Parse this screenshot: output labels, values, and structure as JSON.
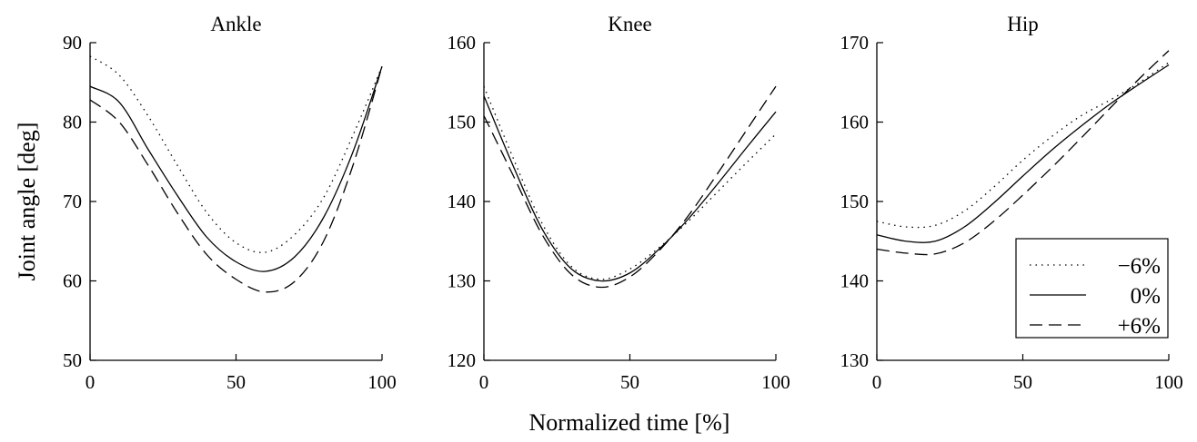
{
  "figure": {
    "ylabel": "Joint angle [deg]",
    "xlabel": "Normalized time [%]"
  },
  "legend": {
    "placement": "bottom-right of Hip panel",
    "entries": [
      {
        "label": "−6%",
        "style": "dotted"
      },
      {
        "label": "0%",
        "style": "solid"
      },
      {
        "label": "+6%",
        "style": "dashed"
      }
    ]
  },
  "chart_data": [
    {
      "type": "line",
      "title": "Ankle",
      "xlim": [
        0,
        100
      ],
      "ylim": [
        50,
        90
      ],
      "xticks": [
        "0",
        "50",
        "100"
      ],
      "yticks": [
        "50",
        "60",
        "70",
        "80",
        "90"
      ],
      "grid": false,
      "series": [
        {
          "name": "−6%",
          "style": "dotted",
          "x": [
            0,
            10,
            20,
            30,
            40,
            50,
            60,
            70,
            80,
            90,
            100
          ],
          "y": [
            88.3,
            85.9,
            80.7,
            74.5,
            68.6,
            64.8,
            63.6,
            65.8,
            70.5,
            78.3,
            87.0
          ]
        },
        {
          "name": "0%",
          "style": "solid",
          "x": [
            0,
            10,
            20,
            30,
            40,
            50,
            60,
            70,
            80,
            90,
            100
          ],
          "y": [
            84.5,
            82.5,
            76.5,
            70.7,
            65.5,
            62.4,
            61.2,
            63.0,
            68.0,
            76.2,
            87.0
          ]
        },
        {
          "name": "+6%",
          "style": "dashed",
          "x": [
            0,
            10,
            20,
            30,
            40,
            50,
            60,
            70,
            80,
            90,
            100
          ],
          "y": [
            82.8,
            80.0,
            74.5,
            68.5,
            63.3,
            60.2,
            58.6,
            59.9,
            65.0,
            74.5,
            87.0
          ]
        }
      ]
    },
    {
      "type": "line",
      "title": "Knee",
      "xlim": [
        0,
        100
      ],
      "ylim": [
        120,
        160
      ],
      "xticks": [
        "0",
        "50",
        "100"
      ],
      "yticks": [
        "120",
        "130",
        "140",
        "150",
        "160"
      ],
      "grid": false,
      "series": [
        {
          "name": "−6%",
          "style": "dotted",
          "x": [
            0,
            10,
            20,
            30,
            40,
            50,
            60,
            70,
            80,
            90,
            100
          ],
          "y": [
            154.5,
            145.5,
            137.2,
            131.8,
            130.2,
            131.5,
            134.2,
            137.5,
            141.2,
            144.9,
            148.5
          ]
        },
        {
          "name": "0%",
          "style": "solid",
          "x": [
            0,
            10,
            20,
            30,
            40,
            50,
            60,
            70,
            80,
            90,
            100
          ],
          "y": [
            153.3,
            144.5,
            136.5,
            131.5,
            130.0,
            131.0,
            134.0,
            137.8,
            142.2,
            146.8,
            151.3
          ]
        },
        {
          "name": "+6%",
          "style": "dashed",
          "x": [
            0,
            10,
            20,
            30,
            40,
            50,
            60,
            70,
            80,
            90,
            100
          ],
          "y": [
            150.8,
            143.3,
            135.8,
            130.8,
            129.2,
            130.5,
            133.8,
            138.2,
            143.5,
            149.0,
            154.5
          ]
        }
      ]
    },
    {
      "type": "line",
      "title": "Hip",
      "xlim": [
        0,
        100
      ],
      "ylim": [
        130,
        170
      ],
      "xticks": [
        "0",
        "50",
        "100"
      ],
      "yticks": [
        "130",
        "140",
        "150",
        "160",
        "170"
      ],
      "grid": false,
      "series": [
        {
          "name": "−6%",
          "style": "dotted",
          "x": [
            0,
            10,
            20,
            30,
            40,
            50,
            60,
            70,
            80,
            90,
            100
          ],
          "y": [
            147.5,
            146.8,
            147.0,
            148.8,
            151.8,
            155.2,
            158.2,
            160.8,
            162.8,
            165.0,
            167.5
          ]
        },
        {
          "name": "0%",
          "style": "solid",
          "x": [
            0,
            10,
            20,
            30,
            40,
            50,
            60,
            70,
            80,
            90,
            100
          ],
          "y": [
            145.8,
            145.0,
            145.0,
            146.8,
            149.8,
            153.2,
            156.5,
            159.5,
            162.3,
            164.8,
            167.2
          ]
        },
        {
          "name": "+6%",
          "style": "dashed",
          "x": [
            0,
            10,
            20,
            30,
            40,
            50,
            60,
            70,
            80,
            90,
            100
          ],
          "y": [
            144.0,
            143.5,
            143.4,
            144.8,
            147.5,
            150.8,
            154.3,
            158.0,
            161.8,
            165.5,
            169.0
          ]
        }
      ]
    }
  ]
}
